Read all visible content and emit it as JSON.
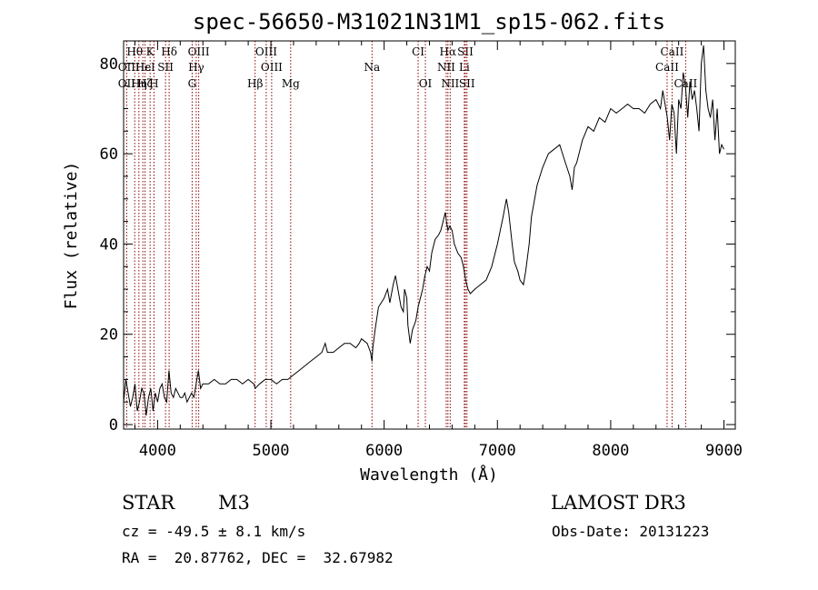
{
  "chart_data": {
    "type": "line",
    "title": "spec-56650-M31021N31M1_sp15-062.fits",
    "xlabel": "Wavelength (Å)",
    "ylabel": "Flux (relative)",
    "xlim": [
      3700,
      9100
    ],
    "ylim": [
      -1,
      85
    ],
    "xticks": [
      4000,
      5000,
      6000,
      7000,
      8000,
      9000
    ],
    "yticks": [
      0,
      20,
      40,
      60,
      80
    ],
    "series": [
      {
        "name": "flux",
        "x": [
          3700,
          3720,
          3740,
          3760,
          3780,
          3800,
          3820,
          3840,
          3860,
          3880,
          3900,
          3920,
          3940,
          3960,
          3980,
          4000,
          4020,
          4040,
          4060,
          4080,
          4100,
          4120,
          4140,
          4160,
          4180,
          4200,
          4220,
          4240,
          4260,
          4280,
          4300,
          4320,
          4340,
          4360,
          4380,
          4400,
          4450,
          4500,
          4550,
          4600,
          4650,
          4700,
          4750,
          4800,
          4850,
          4861,
          4900,
          4950,
          5000,
          5050,
          5100,
          5150,
          5200,
          5250,
          5300,
          5350,
          5400,
          5450,
          5480,
          5500,
          5550,
          5600,
          5650,
          5700,
          5750,
          5780,
          5800,
          5850,
          5880,
          5893,
          5900,
          5920,
          5950,
          6000,
          6030,
          6050,
          6080,
          6100,
          6150,
          6170,
          6180,
          6200,
          6210,
          6230,
          6250,
          6280,
          6300,
          6320,
          6340,
          6360,
          6380,
          6400,
          6420,
          6450,
          6480,
          6500,
          6520,
          6540,
          6550,
          6563,
          6580,
          6600,
          6620,
          6650,
          6680,
          6700,
          6720,
          6740,
          6760,
          6800,
          6850,
          6900,
          6950,
          7000,
          7050,
          7080,
          7100,
          7130,
          7150,
          7180,
          7200,
          7230,
          7250,
          7280,
          7300,
          7350,
          7400,
          7450,
          7500,
          7550,
          7600,
          7640,
          7660,
          7680,
          7700,
          7750,
          7800,
          7850,
          7900,
          7950,
          8000,
          8050,
          8100,
          8150,
          8200,
          8250,
          8300,
          8350,
          8400,
          8440,
          8460,
          8500,
          8520,
          8540,
          8560,
          8580,
          8600,
          8620,
          8640,
          8660,
          8680,
          8700,
          8720,
          8740,
          8760,
          8780,
          8800,
          8820,
          8840,
          8860,
          8880,
          8900,
          8920,
          8940,
          8960,
          8980,
          9000
        ],
        "y": [
          5,
          10,
          7,
          4,
          6,
          9,
          3,
          5,
          8,
          7,
          2,
          6,
          8,
          3,
          7,
          5,
          8,
          9,
          6,
          5,
          12,
          7,
          6,
          8,
          7,
          6,
          6,
          7,
          5,
          6,
          7,
          6,
          9,
          12,
          8,
          9,
          9,
          10,
          9,
          9,
          10,
          10,
          9,
          10,
          9,
          8,
          9,
          10,
          10,
          9,
          10,
          10,
          11,
          12,
          13,
          14,
          15,
          16,
          18,
          16,
          16,
          17,
          18,
          18,
          17,
          18,
          19,
          18,
          16,
          14,
          17,
          21,
          26,
          28,
          30,
          27,
          31,
          33,
          26,
          25,
          30,
          28,
          22,
          18,
          21,
          23,
          26,
          28,
          30,
          33,
          35,
          34,
          38,
          41,
          42,
          43,
          45,
          47,
          45,
          43,
          44,
          43,
          40,
          38,
          37,
          35,
          32,
          30,
          29,
          30,
          31,
          32,
          35,
          40,
          46,
          50,
          47,
          40,
          36,
          34,
          32,
          31,
          34,
          40,
          46,
          53,
          57,
          60,
          61,
          62,
          58,
          55,
          52,
          57,
          58,
          63,
          66,
          65,
          68,
          67,
          70,
          69,
          70,
          71,
          70,
          70,
          69,
          71,
          72,
          70,
          74,
          68,
          63,
          71,
          69,
          60,
          72,
          70,
          78,
          75,
          68,
          76,
          72,
          74,
          70,
          65,
          80,
          84,
          74,
          70,
          68,
          72,
          63,
          70,
          60,
          62,
          61
        ]
      }
    ],
    "lines": {
      "top": [
        {
          "label": "Hθ",
          "x": 3798
        },
        {
          "label": "K",
          "x": 3934
        },
        {
          "label": "Hδ",
          "x": 4102
        },
        {
          "label": "OIII",
          "x": 4363
        },
        {
          "label": "OIII",
          "x": 4959
        },
        {
          "label": "CI",
          "x": 6300
        },
        {
          "label": "Hα",
          "x": 6563
        },
        {
          "label": "SII",
          "x": 6717
        },
        {
          "label": "CaII",
          "x": 8542
        }
      ],
      "mid": [
        {
          "label": "OII",
          "x": 3727
        },
        {
          "label": "Hε",
          "x": 3870
        },
        {
          "label": "Hel",
          "x": 3889
        },
        {
          "label": "SII",
          "x": 4070
        },
        {
          "label": "Hγ",
          "x": 4341
        },
        {
          "label": "OIII",
          "x": 5007
        },
        {
          "label": "Na",
          "x": 5893
        },
        {
          "label": "NII",
          "x": 6548
        },
        {
          "label": "Li",
          "x": 6708
        },
        {
          "label": "CaII",
          "x": 8498
        }
      ],
      "low": [
        {
          "label": "OII",
          "x": 3727
        },
        {
          "label": "Hζ",
          "x": 3889
        },
        {
          "label": "Hη",
          "x": 3835
        },
        {
          "label": "H",
          "x": 3968
        },
        {
          "label": "G",
          "x": 4305
        },
        {
          "label": "Hβ",
          "x": 4861
        },
        {
          "label": "Mg",
          "x": 5175
        },
        {
          "label": "OI",
          "x": 6364
        },
        {
          "label": "NII",
          "x": 6583
        },
        {
          "label": "SII",
          "x": 6731
        },
        {
          "label": "CaII",
          "x": 8662
        }
      ]
    },
    "line_color": "#8b0000"
  },
  "info": {
    "class": "STAR",
    "subclass": "M3",
    "survey": "LAMOST DR3",
    "cz": "cz = -49.5 ± 8.1 km/s",
    "obsdate": "Obs-Date: 20131223",
    "radec": "RA =  20.87762, DEC =  32.67982"
  }
}
